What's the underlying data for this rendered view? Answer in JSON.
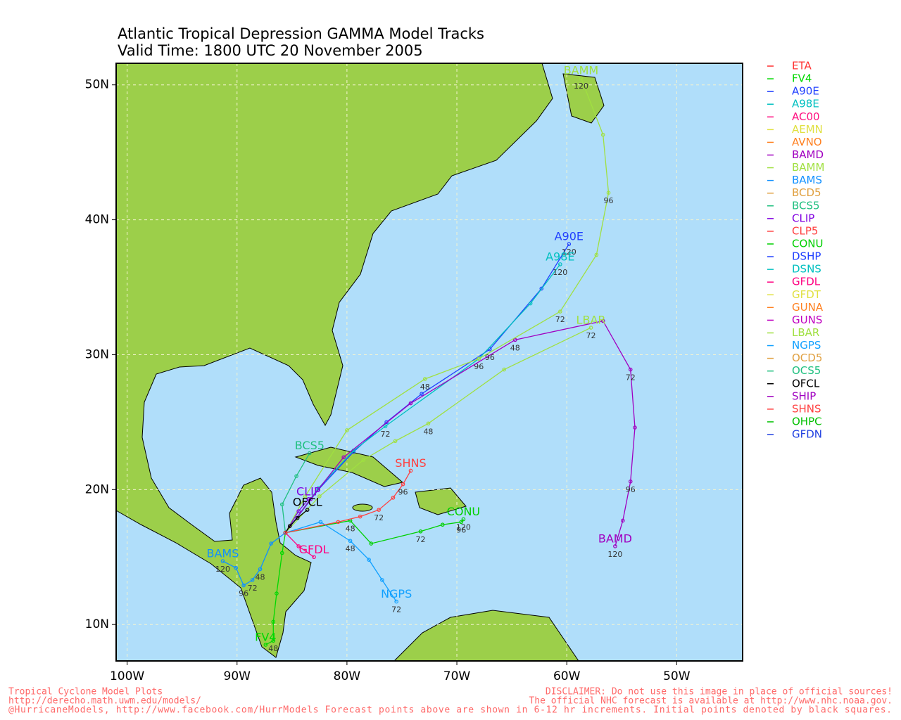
{
  "chart_data": {
    "type": "track-map",
    "title": [
      "Atlantic Tropical Depression GAMMA Model Tracks",
      "Valid Time: 1800 UTC 20 November 2005"
    ],
    "xlim": [
      -101.0,
      -44.0
    ],
    "ylim": [
      7.3,
      51.6
    ],
    "xticks": [
      {
        "value": -100,
        "label": "100W"
      },
      {
        "value": -90,
        "label": "90W"
      },
      {
        "value": -80,
        "label": "80W"
      },
      {
        "value": -70,
        "label": "70W"
      },
      {
        "value": -60,
        "label": "60W"
      },
      {
        "value": -50,
        "label": "50W"
      }
    ],
    "yticks": [
      {
        "value": 10,
        "label": "10N"
      },
      {
        "value": 20,
        "label": "20N"
      },
      {
        "value": 30,
        "label": "30N"
      },
      {
        "value": 40,
        "label": "40N"
      },
      {
        "value": 50,
        "label": "50N"
      }
    ],
    "grid": true,
    "series": [
      {
        "name": "ETA",
        "color": "#ff3030"
      },
      {
        "name": "FV4",
        "color": "#00d800",
        "lon": [
          -85.6,
          -85.9,
          -86.4,
          -86.7,
          -86.7,
          -87.4
        ],
        "lat": [
          16.8,
          15.3,
          12.3,
          10.2,
          8.8,
          8.5
        ],
        "labels": [
          null,
          null,
          null,
          null,
          "48",
          null
        ]
      },
      {
        "name": "A90E",
        "color": "#2040ff",
        "lon": [
          -85.6,
          -82.6,
          -79.4,
          -76.4,
          -73.2,
          -67.0,
          -62.3,
          -59.8
        ],
        "lat": [
          16.8,
          20.0,
          22.8,
          25.0,
          27.1,
          30.4,
          34.9,
          38.2
        ],
        "labels": [
          null,
          null,
          null,
          null,
          null,
          "96",
          null,
          "120"
        ]
      },
      {
        "name": "A98E",
        "color": "#00c0c0",
        "lon": [
          -85.6,
          -82.6,
          -79.4,
          -76.5,
          -68.0,
          -63.3,
          -60.6
        ],
        "lat": [
          16.8,
          20.1,
          22.9,
          24.7,
          29.7,
          33.8,
          36.7
        ],
        "labels": [
          null,
          null,
          null,
          "72",
          "96",
          null,
          "120"
        ]
      },
      {
        "name": "AC00",
        "color": "#ff1080"
      },
      {
        "name": "AEMN",
        "color": "#e0e040"
      },
      {
        "name": "AVNO",
        "color": "#ff8020"
      },
      {
        "name": "BAMD",
        "color": "#a000c0",
        "lon": [
          -85.6,
          -83.3,
          -80.3,
          -74.2,
          -64.7,
          -56.7,
          -54.2,
          -53.8,
          -54.2,
          -54.9,
          -55.6
        ],
        "lat": [
          16.8,
          19.3,
          22.4,
          26.4,
          31.1,
          32.5,
          28.9,
          24.6,
          20.6,
          17.7,
          15.8
        ],
        "labels": [
          null,
          null,
          null,
          null,
          "48",
          null,
          "72",
          null,
          "96",
          null,
          "120"
        ]
      },
      {
        "name": "BAMM",
        "color": "#a0e040",
        "lon": [
          -85.6,
          -83.8,
          -80.0,
          -72.9,
          -68.0,
          -60.6,
          -57.3,
          -56.2,
          -56.7,
          -58.7
        ],
        "lat": [
          16.8,
          19.5,
          24.4,
          28.2,
          29.7,
          33.2,
          37.4,
          42.0,
          46.3,
          50.5
        ],
        "labels": [
          null,
          null,
          null,
          "48",
          null,
          "72",
          null,
          "96",
          null,
          "120"
        ]
      },
      {
        "name": "BAMS",
        "color": "#1090ff",
        "lon": [
          -85.6,
          -86.9,
          -87.9,
          -88.6,
          -89.4,
          -90.1,
          -91.3
        ],
        "lat": [
          16.8,
          16.0,
          14.1,
          13.3,
          12.9,
          14.2,
          14.7
        ],
        "labels": [
          null,
          null,
          "48",
          "72",
          "96",
          null,
          "120"
        ]
      },
      {
        "name": "BCD5",
        "color": "#e0a040"
      },
      {
        "name": "BCS5",
        "color": "#20c080",
        "lon": [
          -85.6,
          -85.9,
          -84.6,
          -83.4
        ],
        "lat": [
          16.8,
          18.9,
          21.0,
          22.7
        ],
        "labels": [
          null,
          null,
          null,
          null
        ]
      },
      {
        "name": "CLIP",
        "color": "#8000e0",
        "lon": [
          -85.6,
          -84.4,
          -83.5
        ],
        "lat": [
          16.8,
          18.4,
          19.3
        ],
        "labels": [
          null,
          null,
          null
        ]
      },
      {
        "name": "CLP5",
        "color": "#ff4040"
      },
      {
        "name": "CONU",
        "color": "#00d000",
        "lon": [
          -85.6,
          -79.7,
          -77.8,
          -73.3,
          -71.3,
          -69.6,
          -69.4
        ],
        "lat": [
          16.8,
          17.7,
          16.0,
          16.9,
          17.4,
          17.6,
          17.8
        ],
        "labels": [
          null,
          "48",
          null,
          "72",
          null,
          "96",
          "120"
        ]
      },
      {
        "name": "DSHP",
        "color": "#2040ff"
      },
      {
        "name": "DSNS",
        "color": "#00c0c0"
      },
      {
        "name": "GFDL",
        "color": "#ff0080",
        "lon": [
          -85.6,
          -84.4,
          -83.0
        ],
        "lat": [
          16.8,
          15.8,
          15.0
        ],
        "labels": [
          null,
          null,
          null
        ]
      },
      {
        "name": "GFDT",
        "color": "#e0e040"
      },
      {
        "name": "GUNA",
        "color": "#ff8020"
      },
      {
        "name": "GUNS",
        "color": "#c000c0"
      },
      {
        "name": "LBAR",
        "color": "#a0e040",
        "lon": [
          -85.6,
          -82.5,
          -78.5,
          -75.6,
          -72.6,
          -65.7,
          -57.8
        ],
        "lat": [
          16.8,
          19.5,
          22.2,
          23.6,
          24.9,
          28.9,
          32.0
        ],
        "labels": [
          null,
          null,
          null,
          null,
          "48",
          null,
          "72"
        ]
      },
      {
        "name": "NGPS",
        "color": "#10a0ff",
        "lon": [
          -85.6,
          -82.4,
          -79.7,
          -78.0,
          -76.8,
          -75.5
        ],
        "lat": [
          16.8,
          17.6,
          16.2,
          14.8,
          13.3,
          11.7
        ],
        "labels": [
          null,
          null,
          "48",
          null,
          null,
          "72"
        ]
      },
      {
        "name": "OCD5",
        "color": "#e0a040"
      },
      {
        "name": "OCS5",
        "color": "#20c080"
      },
      {
        "name": "OFCL",
        "color": "#000000",
        "lon": [
          -85.6,
          -85.2,
          -84.5,
          -83.6
        ],
        "lat": [
          16.8,
          17.3,
          17.9,
          18.5
        ],
        "labels": [
          null,
          null,
          null,
          null
        ]
      },
      {
        "name": "SHIP",
        "color": "#a000c0"
      },
      {
        "name": "SHNS",
        "color": "#ff4040",
        "lon": [
          -85.6,
          -80.8,
          -78.8,
          -77.1,
          -75.8,
          -74.9,
          -74.2
        ],
        "lat": [
          16.8,
          17.6,
          18.0,
          18.5,
          19.4,
          20.4,
          21.4
        ],
        "labels": [
          null,
          null,
          null,
          "72",
          null,
          "96",
          null
        ]
      },
      {
        "name": "OHPC",
        "color": "#00c000"
      },
      {
        "name": "GFDN",
        "color": "#2040e0"
      }
    ],
    "footer_left": [
      "Tropical Cyclone Model Plots",
      "http://derecho.math.uwm.edu/models/",
      "@HurricaneModels, http://www.facebook.com/HurrModels  Forecast points above are shown in 6-12 hr increments. Initial points denoted by black squares."
    ],
    "footer_right": [
      "DISCLAIMER: Do not use this image in place of official sources!",
      "The official NHC forecast is available at http://www.nhc.noaa.gov."
    ]
  }
}
